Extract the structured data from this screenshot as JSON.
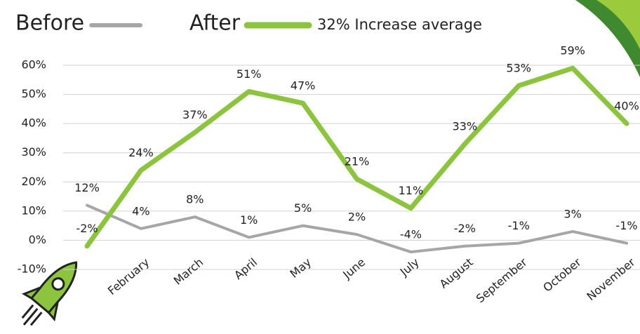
{
  "chart_data": {
    "type": "line",
    "annotation": "32% Increase average",
    "categories": [
      null,
      "February",
      "March",
      "April",
      "May",
      "June",
      "July",
      "August",
      "September",
      "October",
      "November"
    ],
    "series": [
      {
        "name": "Before",
        "color": "#a6a6a6",
        "values": [
          12,
          4,
          8,
          1,
          5,
          2,
          -4,
          -2,
          -1,
          3,
          -1
        ],
        "value_labels": [
          "12%",
          "4%",
          "8%",
          "1%",
          "5%",
          "2%",
          "-4%",
          "-2%",
          "-1%",
          "3%",
          "-1%"
        ]
      },
      {
        "name": "After",
        "color": "#8cc43f",
        "values": [
          -2,
          24,
          37,
          51,
          47,
          21,
          11,
          33,
          53,
          59,
          40
        ],
        "value_labels": [
          "-2%",
          "24%",
          "37%",
          "51%",
          "47%",
          "21%",
          "11%",
          "33%",
          "53%",
          "59%",
          "40%"
        ]
      }
    ],
    "ylim": [
      -10,
      60
    ],
    "yticks": [
      {
        "value": -10,
        "label": "-10%"
      },
      {
        "value": 0,
        "label": "0%"
      },
      {
        "value": 10,
        "label": "10%"
      },
      {
        "value": 20,
        "label": "20%"
      },
      {
        "value": 30,
        "label": "30%"
      },
      {
        "value": 40,
        "label": "40%"
      },
      {
        "value": 50,
        "label": "50%"
      },
      {
        "value": 60,
        "label": "60%"
      }
    ],
    "grid": true
  }
}
